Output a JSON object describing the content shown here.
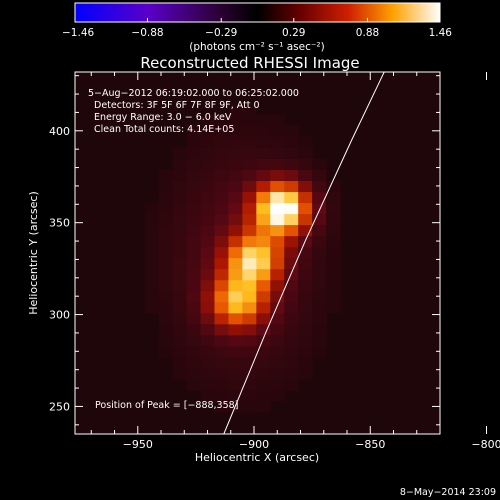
{
  "chart_data": {
    "type": "heatmap",
    "title": "Reconstructed RHESSI Image",
    "xlabel": "Heliocentric X (arcsec)",
    "ylabel": "Heliocentric Y (arcsec)",
    "xlim": [
      -977,
      -820
    ],
    "ylim": [
      235,
      432
    ],
    "x_ticks": [
      -950,
      -900,
      -850,
      -800
    ],
    "x_tick_labels": [
      "−950",
      "−900",
      "−850",
      "−800"
    ],
    "y_ticks": [
      250,
      300,
      350,
      400
    ],
    "y_tick_labels": [
      "250",
      "300",
      "350",
      "400"
    ],
    "grid": false,
    "colormap": "hot",
    "colorbar": {
      "placement": "top",
      "min": -1.46,
      "max": 1.46,
      "ticks": [
        -1.46,
        -0.88,
        -0.29,
        0.29,
        0.88,
        1.46
      ],
      "tick_labels": [
        "−1.46",
        "−0.88",
        "−0.29",
        "0.29",
        "0.88",
        "1.46"
      ],
      "unit_label": "(photons cm⁻² s⁻¹ asec⁻²)"
    },
    "annotations": [
      "5−Aug−2012 06:19:02.000 to 06:25:02.000",
      "Detectors: 3F 5F 6F 7F 8F 9F, Att 0",
      "Energy Range: 3.0 − 6.0 keV",
      "Clean    Total counts: 4.14E+05"
    ],
    "peak_label": "Position of Peak = [−888,358]",
    "peak": [
      -888,
      358
    ],
    "sources": [
      {
        "x": -888,
        "y": 358,
        "amp": 1.46
      },
      {
        "x": -900,
        "y": 330,
        "amp": 1.05
      },
      {
        "x": -907,
        "y": 307,
        "amp": 0.95
      }
    ],
    "limb_curve": [
      [
        -913,
        235
      ],
      [
        -895,
        290
      ],
      [
        -878,
        340
      ],
      [
        -858,
        395
      ],
      [
        -844,
        432
      ]
    ],
    "footer": "8−May−2014 23:09"
  }
}
